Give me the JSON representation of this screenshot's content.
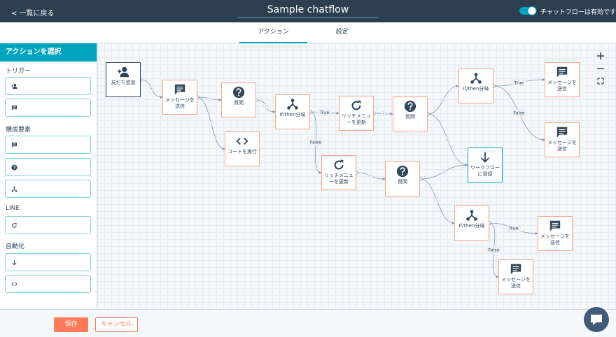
{
  "header": {
    "back": "< 一覧に戻る",
    "title": "Sample chatflow",
    "status": "チャットフローは有効です"
  },
  "tabs": [
    "アクション",
    "設定"
  ],
  "sidebar": {
    "title": "アクションを選択",
    "sections": [
      {
        "heading": "トリガー",
        "items": [
          "友だち追加",
          "メッセージを受信"
        ]
      },
      {
        "heading": "構成要素",
        "items": [
          "メッセージを送信",
          "質問",
          "If/then分岐"
        ]
      },
      {
        "heading": "LINE",
        "items": [
          "リッチメニューを更新"
        ]
      },
      {
        "heading": "自動化",
        "items": [
          "ワークフローに登録",
          "コードを実行"
        ]
      }
    ]
  },
  "canvas": {
    "nodes": [
      "友だち追加",
      "メッセージを送信",
      "質問",
      "コードを実行",
      "If/then分岐",
      "リッチメニューを更新",
      "質問",
      "If/then分岐",
      "メッセージを送信",
      "メッセージを送信",
      "ワークフローに登録",
      "リッチメニューを更新",
      "質問",
      "If/then分岐",
      "メッセージを送信",
      "メッセージを送信"
    ],
    "edge_labels": [
      "True",
      "False",
      "True",
      "False",
      "True",
      "False"
    ]
  },
  "footer": {
    "save": "保存",
    "cancel": "キャンセル"
  }
}
